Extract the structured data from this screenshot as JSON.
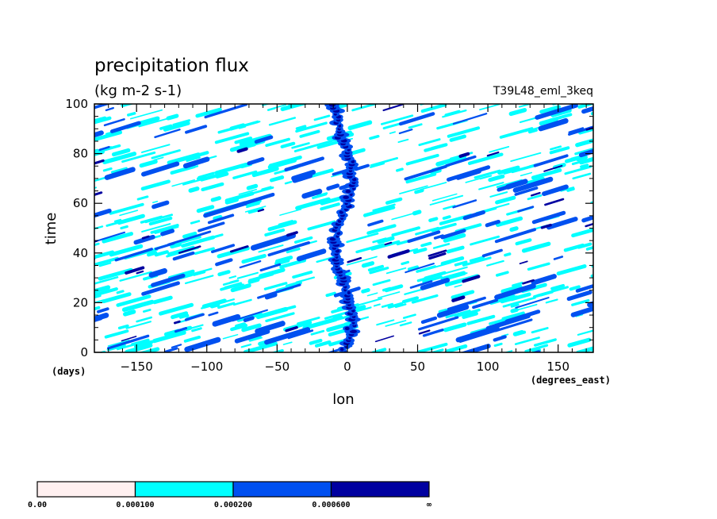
{
  "chart_data": {
    "type": "heatmap",
    "title": "precipitation flux",
    "units": "(kg m-2 s-1)",
    "run_label": "T39L48_eml_3keq",
    "xlabel": "lon",
    "xunits": "(degrees_east)",
    "ylabel": "time",
    "yunits": "(days)",
    "xlim": [
      -180,
      175
    ],
    "ylim": [
      0,
      100
    ],
    "x_ticks": [
      -150,
      -100,
      -50,
      0,
      50,
      100,
      150
    ],
    "x_tick_labels": [
      "−150",
      "−100",
      "−50",
      "0",
      "50",
      "100",
      "150"
    ],
    "y_ticks": [
      0,
      20,
      40,
      60,
      80,
      100
    ],
    "y_tick_labels": [
      "0",
      "20",
      "40",
      "60",
      "80",
      "100"
    ],
    "colorbar": {
      "boundaries": [
        0.0,
        0.0001,
        0.0002,
        0.0006
      ],
      "labels": [
        "0.00",
        "0.000100",
        "0.000200",
        "0.000600",
        "∞"
      ],
      "colors": [
        "#fff0f0",
        "#00ffff",
        "#0050f0",
        "#0000a0"
      ]
    }
  }
}
